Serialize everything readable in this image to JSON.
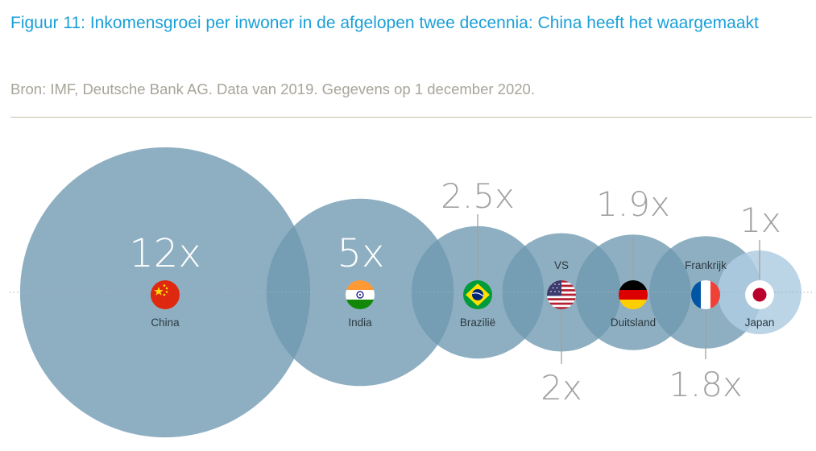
{
  "title": "Figuur 11: Inkomensgroei per inwoner in de afgelopen twee decennia: China heeft het waargemaakt",
  "source": "Bron: IMF, Deutsche Bank AG. Data van 2019. Gegevens op 1 december 2020.",
  "chart_data": {
    "type": "bubble",
    "value_suffix": "x",
    "categories": [
      "China",
      "India",
      "Brazilië",
      "VS",
      "Duitsland",
      "Frankrijk",
      "Japan"
    ],
    "values": [
      12,
      5,
      2.5,
      2,
      1.9,
      1.8,
      1
    ],
    "value_labels": [
      "12x",
      "5x",
      "2.5x",
      "2x",
      "1.9x",
      "1.8x",
      "1x"
    ],
    "flags": [
      "china-flag",
      "india-flag",
      "brazil-flag",
      "usa-flag",
      "germany-flag",
      "france-flag",
      "japan-flag"
    ],
    "colors": {
      "bubble": "#6e98b0",
      "bubble_highlight": "#afcde2",
      "label_dark": "#2b3a42",
      "label_big": "#ffffff",
      "label_grey": "#a3a19f"
    }
  }
}
